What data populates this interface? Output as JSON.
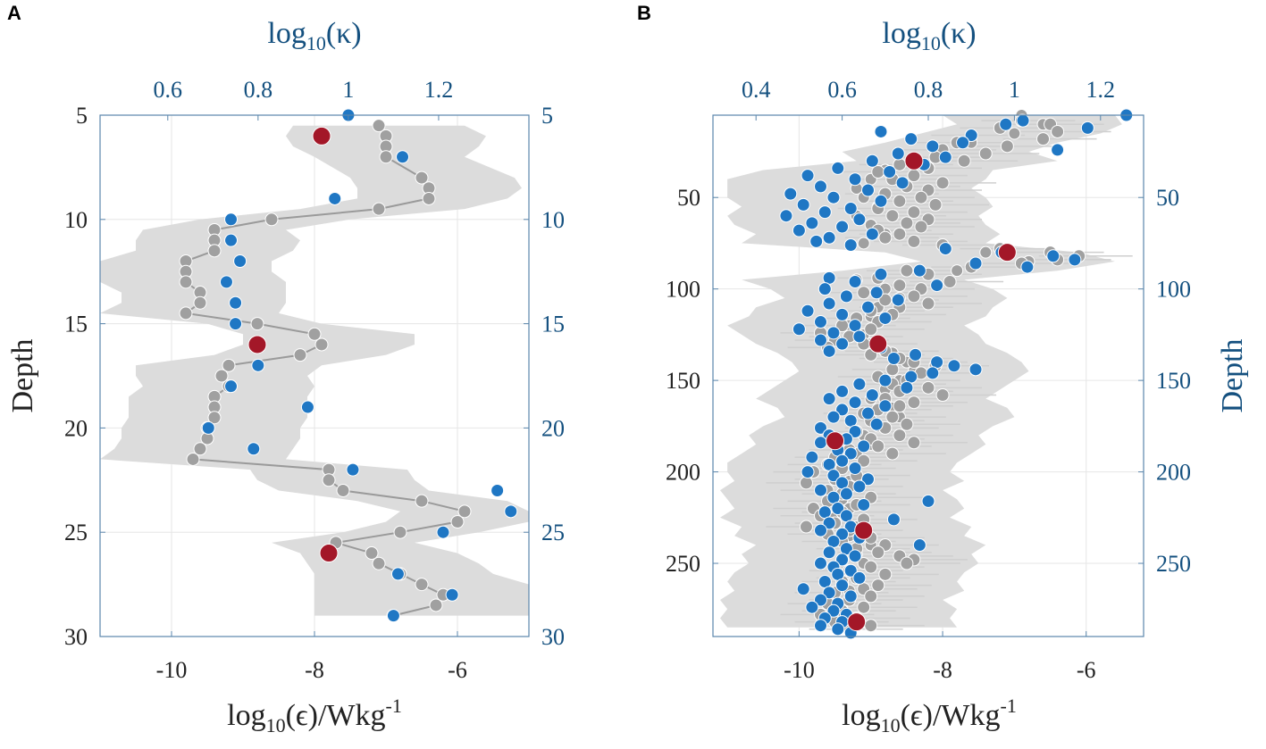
{
  "colors": {
    "grey_marker": "#a0a0a0",
    "blue_marker": "#1f77c4",
    "red_marker": "#a31728",
    "band": "#dcdcdc",
    "axis_blue": "#14507f",
    "axis_black": "#222222",
    "grid": "#e6e6e6"
  },
  "chart_data": [
    {
      "panel": "A",
      "type": "scatter",
      "xlabel_main": "log",
      "xlabel_sub": "10",
      "xlabel_arg": "(ϵ)/Wkg",
      "xlabel_sup": "-1",
      "x2label_main": "log",
      "x2label_sub": "10",
      "x2label_arg": "(κ)",
      "ylabel": "Depth",
      "xlim": [
        -11,
        -5
      ],
      "x2lim": [
        0.45,
        1.4
      ],
      "ylim": [
        5,
        30
      ],
      "x_ticks": [
        -10,
        -8,
        -6
      ],
      "x_tick_labels": [
        "-10",
        "-8",
        "-6"
      ],
      "x2_ticks": [
        0.6,
        0.8,
        1.0,
        1.2
      ],
      "x2_tick_labels": [
        "0.6",
        "0.8",
        "1",
        "1.2"
      ],
      "y_ticks": [
        5,
        10,
        15,
        20,
        25,
        30
      ],
      "y_tick_labels": [
        "5",
        "10",
        "15",
        "20",
        "25",
        "30"
      ],
      "epsilon_series": {
        "name": "log10(epsilon)",
        "depth": [
          5.5,
          6,
          6.5,
          7,
          8,
          8.5,
          9,
          9.5,
          10,
          10.5,
          11,
          11.5,
          12,
          12.5,
          13,
          13.5,
          14,
          14.5,
          15,
          15.5,
          16,
          16.5,
          17,
          17.5,
          18,
          18.5,
          19,
          19.5,
          20,
          20.5,
          21,
          21.5,
          22,
          22.5,
          23,
          23.5,
          24,
          24.5,
          25,
          25.5,
          26,
          26.5,
          27,
          27.5,
          28,
          28.5,
          29
        ],
        "values": [
          -7.1,
          -7.0,
          -7.0,
          -7.0,
          -6.5,
          -6.4,
          -6.4,
          -7.1,
          -8.6,
          -9.4,
          -9.4,
          -9.4,
          -9.8,
          -9.8,
          -9.8,
          -9.6,
          -9.6,
          -9.8,
          -8.8,
          -8.0,
          -7.9,
          -8.2,
          -9.2,
          -9.3,
          -9.2,
          -9.4,
          -9.4,
          -9.4,
          -9.5,
          -9.5,
          -9.6,
          -9.7,
          -7.8,
          -7.8,
          -7.6,
          -6.5,
          -5.9,
          -6.0,
          -6.8,
          -7.7,
          -7.2,
          -7.1,
          -6.8,
          -6.5,
          -6.2,
          -6.3,
          -6.9
        ],
        "band_low": [
          -8.3,
          -8.4,
          -8.3,
          -8.0,
          -7.5,
          -7.4,
          -7.4,
          -8.2,
          -9.6,
          -10.4,
          -10.5,
          -10.5,
          -11.0,
          -11.0,
          -11.0,
          -10.7,
          -10.7,
          -11.0,
          -9.5,
          -9.0,
          -9.0,
          -9.4,
          -10.5,
          -10.5,
          -10.4,
          -10.6,
          -10.6,
          -10.6,
          -10.7,
          -10.7,
          -10.8,
          -11.0,
          -8.9,
          -8.8,
          -8.5,
          -7.4,
          -6.8,
          -7.0,
          -7.6,
          -8.6,
          -8.2,
          -8.1,
          -8.0,
          -8.0,
          -8.0,
          -8.0,
          -8.0
        ],
        "band_high": [
          -5.9,
          -5.6,
          -5.7,
          -5.9,
          -5.2,
          -5.1,
          -5.3,
          -5.9,
          -7.5,
          -8.4,
          -8.2,
          -8.3,
          -8.6,
          -8.6,
          -8.4,
          -8.4,
          -8.4,
          -8.5,
          -7.9,
          -6.6,
          -6.6,
          -7.0,
          -7.9,
          -8.1,
          -8.0,
          -8.1,
          -8.1,
          -8.1,
          -8.2,
          -8.2,
          -8.3,
          -8.4,
          -6.7,
          -6.6,
          -6.4,
          -5.3,
          -5.0,
          -5.0,
          -5.7,
          -6.6,
          -6.0,
          -5.7,
          -5.5,
          -5.0,
          -5.0,
          -5.0,
          -5.0
        ]
      },
      "kappa_series": {
        "name": "log10(kappa)",
        "depth": [
          5,
          7,
          9,
          10,
          11,
          12,
          13,
          14,
          15,
          17,
          18,
          19,
          20,
          21,
          22,
          23,
          24,
          25,
          27,
          28,
          29
        ],
        "values": [
          1.0,
          1.12,
          0.97,
          0.74,
          0.74,
          0.76,
          0.73,
          0.75,
          0.75,
          0.8,
          0.74,
          0.91,
          0.69,
          0.79,
          1.01,
          1.33,
          1.36,
          1.21,
          1.11,
          1.23,
          1.1
        ]
      },
      "highlight_series": {
        "name": "highlighted",
        "depth": [
          6,
          16,
          26
        ],
        "values": [
          -7.9,
          -8.8,
          -7.8
        ]
      }
    },
    {
      "panel": "B",
      "type": "scatter",
      "xlabel_main": "log",
      "xlabel_sub": "10",
      "xlabel_arg": "(ϵ)/Wkg",
      "xlabel_sup": "-1",
      "x2label_main": "log",
      "x2label_sub": "10",
      "x2label_arg": "(κ)",
      "ylabel": "Depth",
      "xlim": [
        -11.2,
        -5.2
      ],
      "x2lim": [
        0.3,
        1.3
      ],
      "ylim": [
        5,
        290
      ],
      "x_ticks": [
        -10,
        -8,
        -6
      ],
      "x_tick_labels": [
        "-10",
        "-8",
        "-6"
      ],
      "x2_ticks": [
        0.4,
        0.6,
        0.8,
        1.0,
        1.2
      ],
      "x2_tick_labels": [
        "0.4",
        "0.6",
        "0.8",
        "1",
        "1.2"
      ],
      "y_ticks": [
        50,
        100,
        150,
        200,
        250
      ],
      "y_tick_labels": [
        "50",
        "100",
        "150",
        "200",
        "250"
      ],
      "epsilon_series": {
        "name": "log10(epsilon)",
        "depth": [
          5,
          10,
          15,
          20,
          25,
          30,
          35,
          40,
          45,
          50,
          55,
          60,
          65,
          70,
          75,
          80,
          85,
          90,
          95,
          100,
          105,
          110,
          115,
          120,
          125,
          130,
          135,
          140,
          145,
          150,
          155,
          160,
          165,
          170,
          175,
          180,
          185,
          190,
          195,
          200,
          205,
          210,
          215,
          220,
          225,
          230,
          235,
          240,
          245,
          250,
          255,
          260,
          265,
          270,
          275,
          280,
          285
        ],
        "values": [
          -6.9,
          -6.6,
          -7.0,
          -7.6,
          -8.0,
          -7.7,
          -8.8,
          -9.0,
          -9.2,
          -9.1,
          -8.9,
          -9.2,
          -9.0,
          -8.8,
          -9.1,
          -7.4,
          -6.8,
          -7.8,
          -9.2,
          -8.8,
          -8.6,
          -8.9,
          -9.0,
          -9.3,
          -9.1,
          -9.0,
          -8.7,
          -8.5,
          -8.4,
          -8.6,
          -8.8,
          -9.0,
          -8.7,
          -8.6,
          -8.9,
          -9.1,
          -9.0,
          -9.2,
          -9.4,
          -9.5,
          -9.3,
          -9.6,
          -9.4,
          -9.3,
          -9.5,
          -9.2,
          -9.3,
          -9.0,
          -9.2,
          -9.1,
          -9.3,
          -9.4,
          -9.3,
          -9.6,
          -9.4,
          -9.5,
          -9.4
        ],
        "band_low": [
          -8.0,
          -7.8,
          -8.3,
          -8.8,
          -9.4,
          -9.2,
          -10.5,
          -11.0,
          -11.0,
          -11.0,
          -10.8,
          -11.0,
          -10.9,
          -10.6,
          -10.8,
          -8.8,
          -8.3,
          -9.4,
          -10.8,
          -10.4,
          -10.2,
          -10.6,
          -10.7,
          -11.0,
          -10.8,
          -10.6,
          -10.3,
          -10.1,
          -10.0,
          -10.2,
          -10.4,
          -10.6,
          -10.3,
          -10.2,
          -10.5,
          -10.7,
          -10.6,
          -10.8,
          -11.0,
          -11.0,
          -10.9,
          -11.1,
          -11.0,
          -10.9,
          -11.1,
          -10.8,
          -10.9,
          -10.6,
          -10.8,
          -10.7,
          -10.9,
          -11.0,
          -10.9,
          -11.1,
          -11.0,
          -11.1,
          -11.0
        ],
        "band_high": [
          -5.6,
          -5.5,
          -5.8,
          -6.4,
          -6.8,
          -6.4,
          -7.3,
          -7.4,
          -7.6,
          -7.4,
          -7.3,
          -7.5,
          -7.4,
          -7.2,
          -7.4,
          -6.1,
          -5.6,
          -6.4,
          -7.7,
          -7.3,
          -7.1,
          -7.3,
          -7.4,
          -7.7,
          -7.5,
          -7.4,
          -7.1,
          -6.9,
          -6.8,
          -7.0,
          -7.2,
          -7.4,
          -7.1,
          -7.0,
          -7.3,
          -7.5,
          -7.4,
          -7.6,
          -7.8,
          -7.9,
          -7.7,
          -8.0,
          -7.8,
          -7.7,
          -7.9,
          -7.6,
          -7.7,
          -7.4,
          -7.6,
          -7.5,
          -7.7,
          -7.8,
          -7.7,
          -8.0,
          -7.8,
          -7.9,
          -7.8
        ]
      },
      "grey_scatter": {
        "name": "log10(epsilon) samples",
        "depth": [
          8,
          10,
          12,
          14,
          16,
          18,
          20,
          22,
          24,
          26,
          28,
          30,
          32,
          34,
          36,
          38,
          40,
          42,
          44,
          46,
          48,
          50,
          52,
          54,
          56,
          58,
          60,
          62,
          64,
          66,
          68,
          70,
          72,
          74,
          76,
          78,
          80,
          82,
          84,
          86,
          88,
          90,
          92,
          94,
          96,
          98,
          100,
          102,
          104,
          106,
          108,
          110,
          112,
          114,
          116,
          118,
          120,
          122,
          124,
          126,
          128,
          130,
          132,
          134,
          136,
          138,
          140,
          142,
          144,
          146,
          148,
          150,
          152,
          154,
          156,
          158,
          160,
          162,
          164,
          166,
          168,
          170,
          172,
          174,
          176,
          178,
          180,
          182,
          184,
          186,
          188,
          190,
          192,
          194,
          196,
          198,
          200,
          202,
          204,
          206,
          208,
          210,
          212,
          214,
          216,
          218,
          220,
          222,
          224,
          226,
          228,
          230,
          232,
          234,
          236,
          238,
          240,
          242,
          244,
          246,
          248,
          250,
          252,
          254,
          256,
          258,
          260,
          262,
          264,
          266,
          268,
          270,
          272,
          274,
          276,
          278,
          280,
          282,
          284,
          286
        ],
        "values": [
          -6.9,
          -6.5,
          -7.2,
          -6.4,
          -7.6,
          -6.6,
          -7.8,
          -7.1,
          -8.0,
          -7.4,
          -8.1,
          -7.7,
          -8.6,
          -8.2,
          -8.9,
          -8.4,
          -8.7,
          -8.0,
          -8.5,
          -8.2,
          -8.8,
          -8.3,
          -8.6,
          -8.1,
          -8.9,
          -8.4,
          -8.7,
          -8.2,
          -8.5,
          -8.3,
          -8.9,
          -8.6,
          -8.8,
          -8.4,
          -8.0,
          -7.2,
          -6.5,
          -6.1,
          -6.4,
          -6.9,
          -7.6,
          -8.5,
          -8.2,
          -8.9,
          -7.9,
          -8.6,
          -8.3,
          -9.1,
          -8.4,
          -8.8,
          -8.2,
          -8.6,
          -9.0,
          -8.7,
          -9.2,
          -8.9,
          -9.4,
          -9.0,
          -9.7,
          -9.3,
          -9.5,
          -9.1,
          -9.6,
          -8.8,
          -9.0,
          -8.6,
          -8.4,
          -8.1,
          -8.7,
          -8.3,
          -8.9,
          -8.5,
          -8.7,
          -8.2,
          -8.6,
          -8.0,
          -8.8,
          -8.4,
          -8.6,
          -8.9,
          -9.1,
          -8.7,
          -9.0,
          -8.5,
          -8.8,
          -9.2,
          -8.6,
          -9.0,
          -8.4,
          -8.9,
          -9.3,
          -8.7,
          -9.5,
          -9.1,
          -9.6,
          -9.4,
          -9.8,
          -9.2,
          -9.5,
          -9.9,
          -9.3,
          -9.7,
          -9.4,
          -9.0,
          -9.6,
          -9.2,
          -9.8,
          -9.4,
          -9.7,
          -9.1,
          -9.5,
          -9.9,
          -9.3,
          -9.6,
          -9.0,
          -9.4,
          -8.8,
          -9.2,
          -8.9,
          -8.6,
          -8.4,
          -8.5,
          -9.0,
          -9.3,
          -8.8,
          -9.2,
          -9.4,
          -8.9,
          -9.1,
          -9.5,
          -9.0,
          -9.3,
          -9.6,
          -9.1,
          -9.4,
          -9.7,
          -9.2,
          -9.5,
          -9.0,
          -9.3
        ]
      },
      "kappa_series": {
        "name": "log10(kappa)",
        "depth": [
          5,
          8,
          10,
          12,
          14,
          16,
          18,
          20,
          22,
          24,
          26,
          28,
          30,
          32,
          34,
          36,
          38,
          40,
          42,
          44,
          46,
          48,
          50,
          52,
          54,
          56,
          58,
          60,
          62,
          64,
          66,
          68,
          70,
          72,
          74,
          76,
          78,
          80,
          82,
          84,
          86,
          88,
          90,
          92,
          94,
          96,
          98,
          100,
          102,
          104,
          106,
          108,
          110,
          112,
          114,
          116,
          118,
          120,
          122,
          124,
          126,
          128,
          130,
          132,
          134,
          136,
          138,
          140,
          142,
          144,
          146,
          148,
          150,
          152,
          154,
          156,
          158,
          160,
          162,
          164,
          166,
          168,
          170,
          172,
          174,
          176,
          178,
          180,
          182,
          184,
          186,
          188,
          190,
          192,
          194,
          196,
          198,
          200,
          202,
          204,
          206,
          208,
          210,
          212,
          214,
          216,
          218,
          220,
          222,
          224,
          226,
          228,
          230,
          232,
          234,
          236,
          238,
          240,
          242,
          244,
          246,
          248,
          250,
          252,
          254,
          256,
          258,
          260,
          262,
          264,
          266,
          268,
          270,
          272,
          274,
          276,
          278,
          280,
          282,
          284,
          286,
          288
        ],
        "values": [
          1.26,
          1.02,
          0.98,
          1.17,
          0.69,
          0.9,
          0.76,
          0.88,
          0.81,
          1.1,
          0.73,
          0.84,
          0.67,
          0.79,
          0.59,
          0.71,
          0.52,
          0.63,
          0.74,
          0.55,
          0.66,
          0.48,
          0.58,
          0.69,
          0.51,
          0.62,
          0.56,
          0.47,
          0.64,
          0.53,
          0.6,
          0.5,
          0.67,
          0.57,
          0.54,
          0.62,
          0.84,
          0.97,
          1.09,
          1.14,
          0.91,
          1.03,
          0.78,
          0.69,
          0.57,
          0.63,
          0.82,
          0.56,
          0.68,
          0.61,
          0.73,
          0.57,
          0.66,
          0.52,
          0.6,
          0.7,
          0.55,
          0.63,
          0.5,
          0.58,
          0.64,
          0.55,
          0.6,
          0.69,
          0.57,
          0.77,
          0.72,
          0.82,
          0.86,
          0.91,
          0.81,
          0.76,
          0.7,
          0.64,
          0.75,
          0.6,
          0.67,
          0.57,
          0.63,
          0.7,
          0.6,
          0.66,
          0.58,
          0.62,
          0.68,
          0.55,
          0.63,
          0.57,
          0.61,
          0.55,
          0.65,
          0.59,
          0.62,
          0.53,
          0.6,
          0.57,
          0.63,
          0.52,
          0.58,
          0.66,
          0.6,
          0.64,
          0.55,
          0.61,
          0.58,
          0.8,
          0.65,
          0.59,
          0.56,
          0.61,
          0.72,
          0.57,
          0.62,
          0.55,
          0.6,
          0.64,
          0.58,
          0.78,
          0.61,
          0.57,
          0.63,
          0.6,
          0.55,
          0.58,
          0.62,
          0.59,
          0.64,
          0.56,
          0.6,
          0.51,
          0.57,
          0.62,
          0.55,
          0.59,
          0.53,
          0.58,
          0.61,
          0.56,
          0.6,
          0.55,
          0.59,
          0.62
        ]
      },
      "highlight_series": {
        "name": "highlighted",
        "depth": [
          30,
          80,
          130,
          183,
          232,
          282
        ],
        "values": [
          -8.4,
          -7.1,
          -8.9,
          -9.5,
          -9.1,
          -9.2
        ]
      }
    }
  ]
}
